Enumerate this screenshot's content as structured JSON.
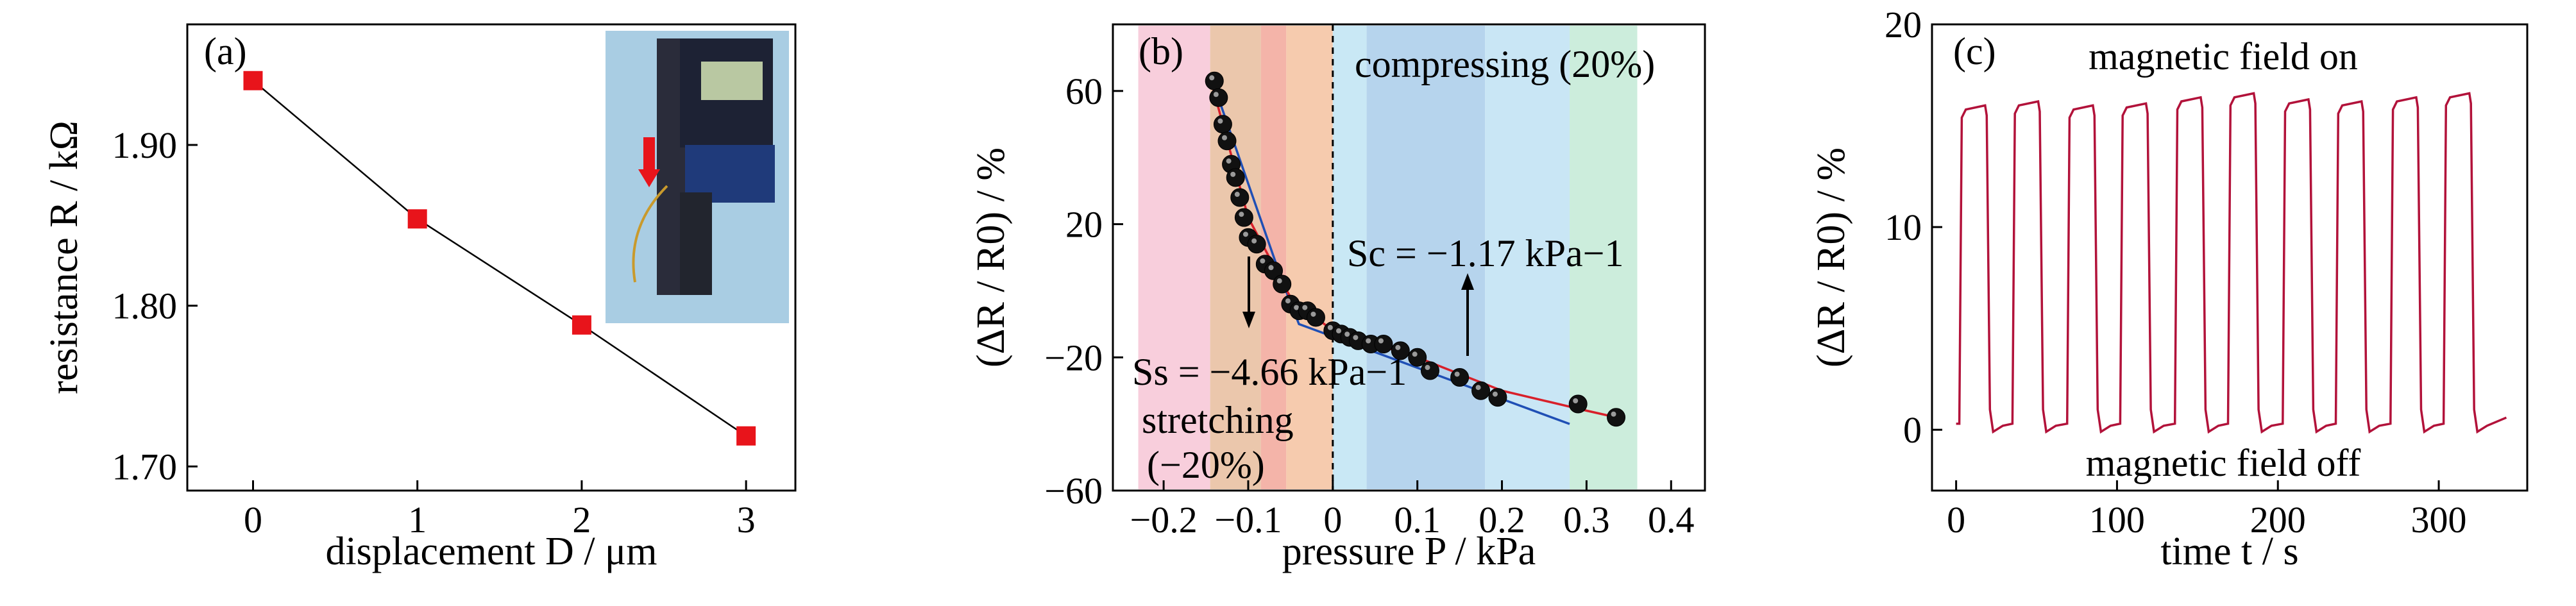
{
  "chart_data": [
    {
      "panel": "(a)",
      "type": "line",
      "xlabel": "displacement D / μm",
      "ylabel": "resistance R / kΩ",
      "xlim": [
        -0.4,
        3.3
      ],
      "ylim": [
        1.685,
        1.975
      ],
      "xticks": [
        "0",
        "1",
        "2",
        "3"
      ],
      "yticks": [
        "1.70",
        "1.80",
        "1.90"
      ],
      "x": [
        0,
        1,
        2,
        3
      ],
      "y": [
        1.94,
        1.854,
        1.788,
        1.719
      ],
      "marker_color": "#e8141b",
      "inset": "photo of micrometer with red downward arrow"
    },
    {
      "panel": "(b)",
      "type": "scatter",
      "xlabel": "pressure P / kPa",
      "ylabel": "(ΔR / R0) / %",
      "xlim": [
        -0.26,
        0.44
      ],
      "ylim": [
        -60,
        80
      ],
      "xticks": [
        "−0.2",
        "−0.1",
        "0",
        "0.1",
        "0.2",
        "0.3",
        "0.4"
      ],
      "yticks": [
        "−60",
        "−20",
        "20",
        "60"
      ],
      "annotations": {
        "compressing": "compressing (20%)",
        "stretching": "stretching",
        "stretching_pct": "(−20%)",
        "sc": "Sc = −1.17 kPa−1",
        "ss": "Ss = −4.66 kPa−1"
      },
      "points_x": [
        -0.14,
        -0.135,
        -0.13,
        -0.125,
        -0.12,
        -0.115,
        -0.11,
        -0.105,
        -0.1,
        -0.09,
        -0.08,
        -0.07,
        -0.06,
        -0.05,
        -0.04,
        -0.03,
        -0.02,
        0.0,
        0.01,
        0.02,
        0.03,
        0.045,
        0.06,
        0.08,
        0.1,
        0.115,
        0.15,
        0.175,
        0.195,
        0.29,
        0.335
      ],
      "points_y": [
        63,
        58,
        50,
        45,
        38,
        34,
        28,
        22,
        16,
        14,
        8,
        6,
        2,
        -4,
        -6,
        -6,
        -8,
        -12,
        -13,
        -14,
        -15,
        -16,
        -16,
        -18,
        -20,
        -24,
        -26,
        -30,
        -32,
        -34,
        -38
      ],
      "fit_red_x": [
        -0.145,
        -0.1,
        -0.05,
        0.0,
        0.05,
        0.1,
        0.15,
        0.2,
        0.25,
        0.3,
        0.335
      ],
      "fit_red_y": [
        64,
        22,
        -2,
        -12,
        -16,
        -20,
        -25,
        -30,
        -33,
        -36,
        -38
      ],
      "fit_blue_x": [
        -0.145,
        -0.06,
        -0.04,
        0.28
      ],
      "fit_blue_y": [
        65,
        3,
        -10,
        -40
      ],
      "bands": [
        {
          "x0": -0.23,
          "x1": -0.145,
          "color": "#f7c6d6"
        },
        {
          "x0": -0.145,
          "x1": -0.085,
          "color": "#e7bd9d"
        },
        {
          "x0": -0.085,
          "x1": -0.055,
          "color": "#f2a79a"
        },
        {
          "x0": -0.055,
          "x1": 0.0,
          "color": "#f4c2a0"
        },
        {
          "x0": 0.0,
          "x1": 0.04,
          "color": "#bfe4f3"
        },
        {
          "x0": 0.04,
          "x1": 0.18,
          "color": "#a9cdea"
        },
        {
          "x0": 0.18,
          "x1": 0.28,
          "color": "#c0e2f3"
        },
        {
          "x0": 0.28,
          "x1": 0.36,
          "color": "#c3ead6"
        }
      ]
    },
    {
      "panel": "(c)",
      "type": "line",
      "xlabel": "time t / s",
      "ylabel": "(ΔR / R0) / %",
      "xlim": [
        -15,
        355
      ],
      "ylim": [
        -3,
        20
      ],
      "xticks": [
        "0",
        "100",
        "200",
        "300"
      ],
      "yticks": [
        "0",
        "10",
        "20"
      ],
      "annotations": {
        "on": "magnetic field on",
        "off": "magnetic field off"
      },
      "cycle_starts": [
        2,
        35,
        69,
        102,
        136,
        169,
        203,
        236,
        270,
        303
      ],
      "on_levels": [
        16.0,
        16.2,
        16.0,
        16.1,
        16.4,
        16.6,
        16.3,
        16.2,
        16.4,
        16.6
      ],
      "on_duration": 17,
      "period": 33.6,
      "baseline": 0.3,
      "line_color": "#b2123a"
    }
  ]
}
